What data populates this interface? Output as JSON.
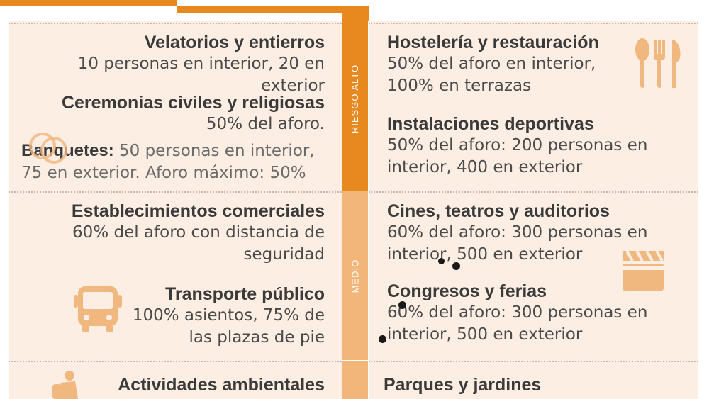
{
  "bands": {
    "high": "RIESGO ALTO",
    "mid": "MEDIO"
  },
  "left": {
    "velatorios": {
      "title": "Velatorios y entierros",
      "line1": "10 personas en interior, 20 en exterior"
    },
    "ceremonias": {
      "title": "Ceremonias civiles y religiosas",
      "line1": "50% del aforo.",
      "banquetes_label": "Banquetes:",
      "banquetes_line1": " 50 personas en interior,",
      "banquetes_line2": "75 en exterior. Aforo máximo: 50%"
    },
    "comercios": {
      "title": "Establecimientos comerciales",
      "line1": "60% del aforo con distancia de",
      "line2": "seguridad"
    },
    "transporte": {
      "title": "Transporte público",
      "line1": "100% asientos, 75% de",
      "line2": "las plazas de pie"
    },
    "actividades": {
      "title": "Actividades ambientales"
    }
  },
  "right": {
    "hosteleria": {
      "title": "Hostelería y restauración",
      "line1": "50% del aforo en interior,",
      "line2": "100% en terrazas"
    },
    "deportivas": {
      "title": "Instalaciones deportivas",
      "line1": "50% del aforo: 200 personas en",
      "line2": "interior, 400 en exterior"
    },
    "cines": {
      "title": "Cines, teatros y auditorios",
      "line1": "60% del aforo: 300 personas en",
      "line2": "interior, 500 en exterior"
    },
    "congresos": {
      "title": "Congresos y ferias",
      "line1": "60% del aforo: 300 personas en",
      "line2": "interior, 500 en exterior"
    },
    "parques": {
      "title": "Parques y jardines"
    }
  },
  "colors": {
    "accent": "#e8891f",
    "accent_light": "#f3b679",
    "panel": "#fdeee3",
    "icon": "#f0b77f"
  },
  "icons": [
    "rings-icon",
    "cutlery-icon",
    "clapperboard-icon",
    "bus-icon",
    "hiker-icon"
  ]
}
